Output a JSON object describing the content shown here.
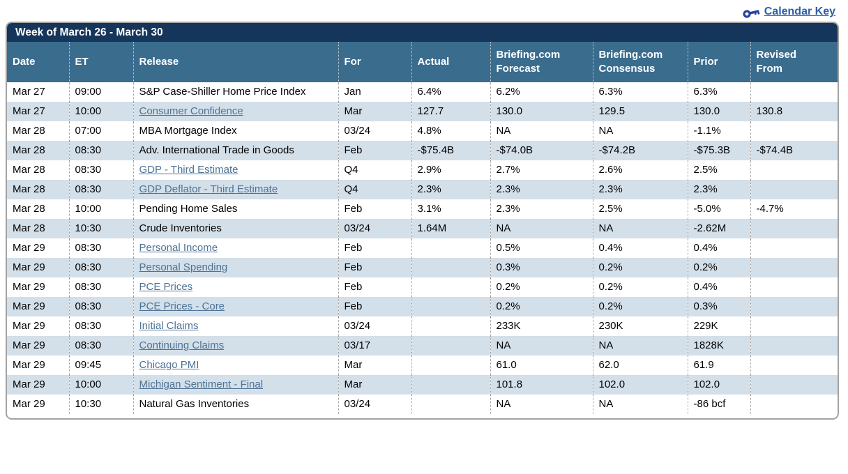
{
  "page": {
    "calendar_key_label": "Calendar Key",
    "key_icon": "key-icon"
  },
  "colors": {
    "title_bar_bg": "#16355B",
    "header_bg": "#3A6C8E",
    "alt_row_bg": "#D3DFE9",
    "release_link": "#4D7396",
    "calendar_key_link": "#2C5FA8",
    "key_icon": "#27419E",
    "panel_border": "#A3A3A3"
  },
  "table": {
    "title": "Week of March 26 - March 30",
    "columns": [
      "Date",
      "ET",
      "Release",
      "For",
      "Actual",
      "Briefing.com Forecast",
      "Briefing.com Consensus",
      "Prior",
      "Revised From"
    ],
    "rows": [
      {
        "date": "Mar 27",
        "et": "09:00",
        "release": "S&P Case-Shiller Home Price Index",
        "link": false,
        "for": "Jan",
        "actual": "6.4%",
        "forecast": "6.2%",
        "consensus": "6.3%",
        "prior": "6.3%",
        "revised": ""
      },
      {
        "date": "Mar 27",
        "et": "10:00",
        "release": "Consumer Confidence",
        "link": true,
        "for": "Mar",
        "actual": "127.7",
        "forecast": "130.0",
        "consensus": "129.5",
        "prior": "130.0",
        "revised": "130.8"
      },
      {
        "date": "Mar 28",
        "et": "07:00",
        "release": "MBA Mortgage Index",
        "link": false,
        "for": "03/24",
        "actual": "4.8%",
        "forecast": "NA",
        "consensus": "NA",
        "prior": "-1.1%",
        "revised": ""
      },
      {
        "date": "Mar 28",
        "et": "08:30",
        "release": "Adv. International Trade in Goods",
        "link": false,
        "for": "Feb",
        "actual": "-$75.4B",
        "forecast": "-$74.0B",
        "consensus": "-$74.2B",
        "prior": "-$75.3B",
        "revised": "-$74.4B"
      },
      {
        "date": "Mar 28",
        "et": "08:30",
        "release": "GDP - Third Estimate",
        "link": true,
        "for": "Q4",
        "actual": "2.9%",
        "forecast": "2.7%",
        "consensus": "2.6%",
        "prior": "2.5%",
        "revised": ""
      },
      {
        "date": "Mar 28",
        "et": "08:30",
        "release": "GDP Deflator - Third Estimate",
        "link": true,
        "for": "Q4",
        "actual": "2.3%",
        "forecast": "2.3%",
        "consensus": "2.3%",
        "prior": "2.3%",
        "revised": ""
      },
      {
        "date": "Mar 28",
        "et": "10:00",
        "release": "Pending Home Sales",
        "link": false,
        "for": "Feb",
        "actual": "3.1%",
        "forecast": "2.3%",
        "consensus": "2.5%",
        "prior": "-5.0%",
        "revised": "-4.7%"
      },
      {
        "date": "Mar 28",
        "et": "10:30",
        "release": "Crude Inventories",
        "link": false,
        "for": "03/24",
        "actual": "1.64M",
        "forecast": "NA",
        "consensus": "NA",
        "prior": "-2.62M",
        "revised": ""
      },
      {
        "date": "Mar 29",
        "et": "08:30",
        "release": "Personal Income",
        "link": true,
        "for": "Feb",
        "actual": "",
        "forecast": "0.5%",
        "consensus": "0.4%",
        "prior": "0.4%",
        "revised": ""
      },
      {
        "date": "Mar 29",
        "et": "08:30",
        "release": "Personal Spending",
        "link": true,
        "for": "Feb",
        "actual": "",
        "forecast": "0.3%",
        "consensus": "0.2%",
        "prior": "0.2%",
        "revised": ""
      },
      {
        "date": "Mar 29",
        "et": "08:30",
        "release": "PCE Prices",
        "link": true,
        "for": "Feb",
        "actual": "",
        "forecast": "0.2%",
        "consensus": "0.2%",
        "prior": "0.4%",
        "revised": ""
      },
      {
        "date": "Mar 29",
        "et": "08:30",
        "release": "PCE Prices - Core",
        "link": true,
        "for": "Feb",
        "actual": "",
        "forecast": "0.2%",
        "consensus": "0.2%",
        "prior": "0.3%",
        "revised": ""
      },
      {
        "date": "Mar 29",
        "et": "08:30",
        "release": "Initial Claims",
        "link": true,
        "for": "03/24",
        "actual": "",
        "forecast": "233K",
        "consensus": "230K",
        "prior": "229K",
        "revised": ""
      },
      {
        "date": "Mar 29",
        "et": "08:30",
        "release": "Continuing Claims",
        "link": true,
        "for": "03/17",
        "actual": "",
        "forecast": "NA",
        "consensus": "NA",
        "prior": "1828K",
        "revised": ""
      },
      {
        "date": "Mar 29",
        "et": "09:45",
        "release": "Chicago PMI",
        "link": true,
        "for": "Mar",
        "actual": "",
        "forecast": "61.0",
        "consensus": "62.0",
        "prior": "61.9",
        "revised": ""
      },
      {
        "date": "Mar 29",
        "et": "10:00",
        "release": "Michigan Sentiment - Final",
        "link": true,
        "for": "Mar",
        "actual": "",
        "forecast": "101.8",
        "consensus": "102.0",
        "prior": "102.0",
        "revised": ""
      },
      {
        "date": "Mar 29",
        "et": "10:30",
        "release": "Natural Gas Inventories",
        "link": false,
        "for": "03/24",
        "actual": "",
        "forecast": "NA",
        "consensus": "NA",
        "prior": "-86 bcf",
        "revised": ""
      }
    ]
  }
}
